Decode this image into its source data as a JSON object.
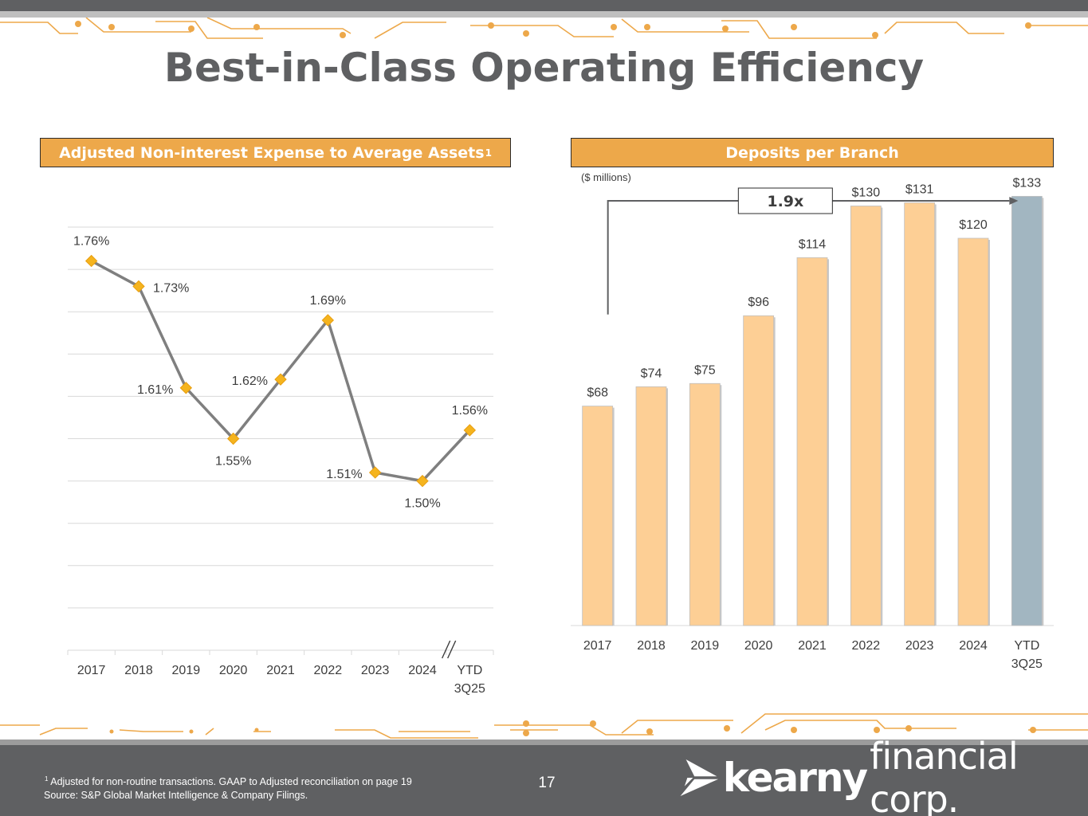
{
  "title": "Best-in-Class Operating Efficiency",
  "colors": {
    "accent_orange": "#eda84a",
    "bar_fill": "#fdcf95",
    "bar_highlight": "#a2b6c1",
    "line": "#7f7f7f",
    "marker": "#f5b41e",
    "dark_gray": "#5f6062"
  },
  "chart_data": [
    {
      "type": "line",
      "title": "Adjusted Non-interest Expense to Average Assets",
      "title_superscript": "1",
      "categories": [
        "2017",
        "2018",
        "2019",
        "2020",
        "2021",
        "2022",
        "2023",
        "2024",
        "YTD 3Q25"
      ],
      "category_lines": [
        [
          "2017"
        ],
        [
          "2018"
        ],
        [
          "2019"
        ],
        [
          "2020"
        ],
        [
          "2021"
        ],
        [
          "2022"
        ],
        [
          "2023"
        ],
        [
          "2024"
        ],
        [
          "YTD",
          "3Q25"
        ]
      ],
      "values": [
        1.76,
        1.73,
        1.61,
        1.55,
        1.62,
        1.69,
        1.51,
        1.5,
        1.56
      ],
      "data_labels": [
        "1.76%",
        "1.73%",
        "1.61%",
        "1.55%",
        "1.62%",
        "1.69%",
        "1.51%",
        "1.50%",
        "1.56%"
      ],
      "ylim": [
        1.3,
        1.8
      ],
      "grid_step": 0.05,
      "axis_break_before": "YTD 3Q25"
    },
    {
      "type": "bar",
      "title": "Deposits per Branch",
      "units": "($ millions)",
      "categories": [
        "2017",
        "2018",
        "2019",
        "2020",
        "2021",
        "2022",
        "2023",
        "2024",
        "YTD 3Q25"
      ],
      "category_lines": [
        [
          "2017"
        ],
        [
          "2018"
        ],
        [
          "2019"
        ],
        [
          "2020"
        ],
        [
          "2021"
        ],
        [
          "2022"
        ],
        [
          "2023"
        ],
        [
          "2024"
        ],
        [
          "YTD",
          "3Q25"
        ]
      ],
      "values": [
        68,
        74,
        75,
        96,
        114,
        130,
        131,
        120,
        133
      ],
      "data_labels": [
        "$68",
        "$74",
        "$75",
        "$96",
        "$114",
        "$130",
        "$131",
        "$120",
        "$133"
      ],
      "highlight_category": "YTD 3Q25",
      "ylim": [
        0,
        140
      ],
      "growth_annotation": "1.9x"
    }
  ],
  "footer": {
    "footnote_marker": "1",
    "footnote": "Adjusted for non-routine transactions. GAAP to Adjusted reconciliation on page 19",
    "source": "Source: S&P Global Market Intelligence & Company Filings.",
    "page_number": "17",
    "logo_bold": "kearny",
    "logo_light": "financial corp."
  }
}
